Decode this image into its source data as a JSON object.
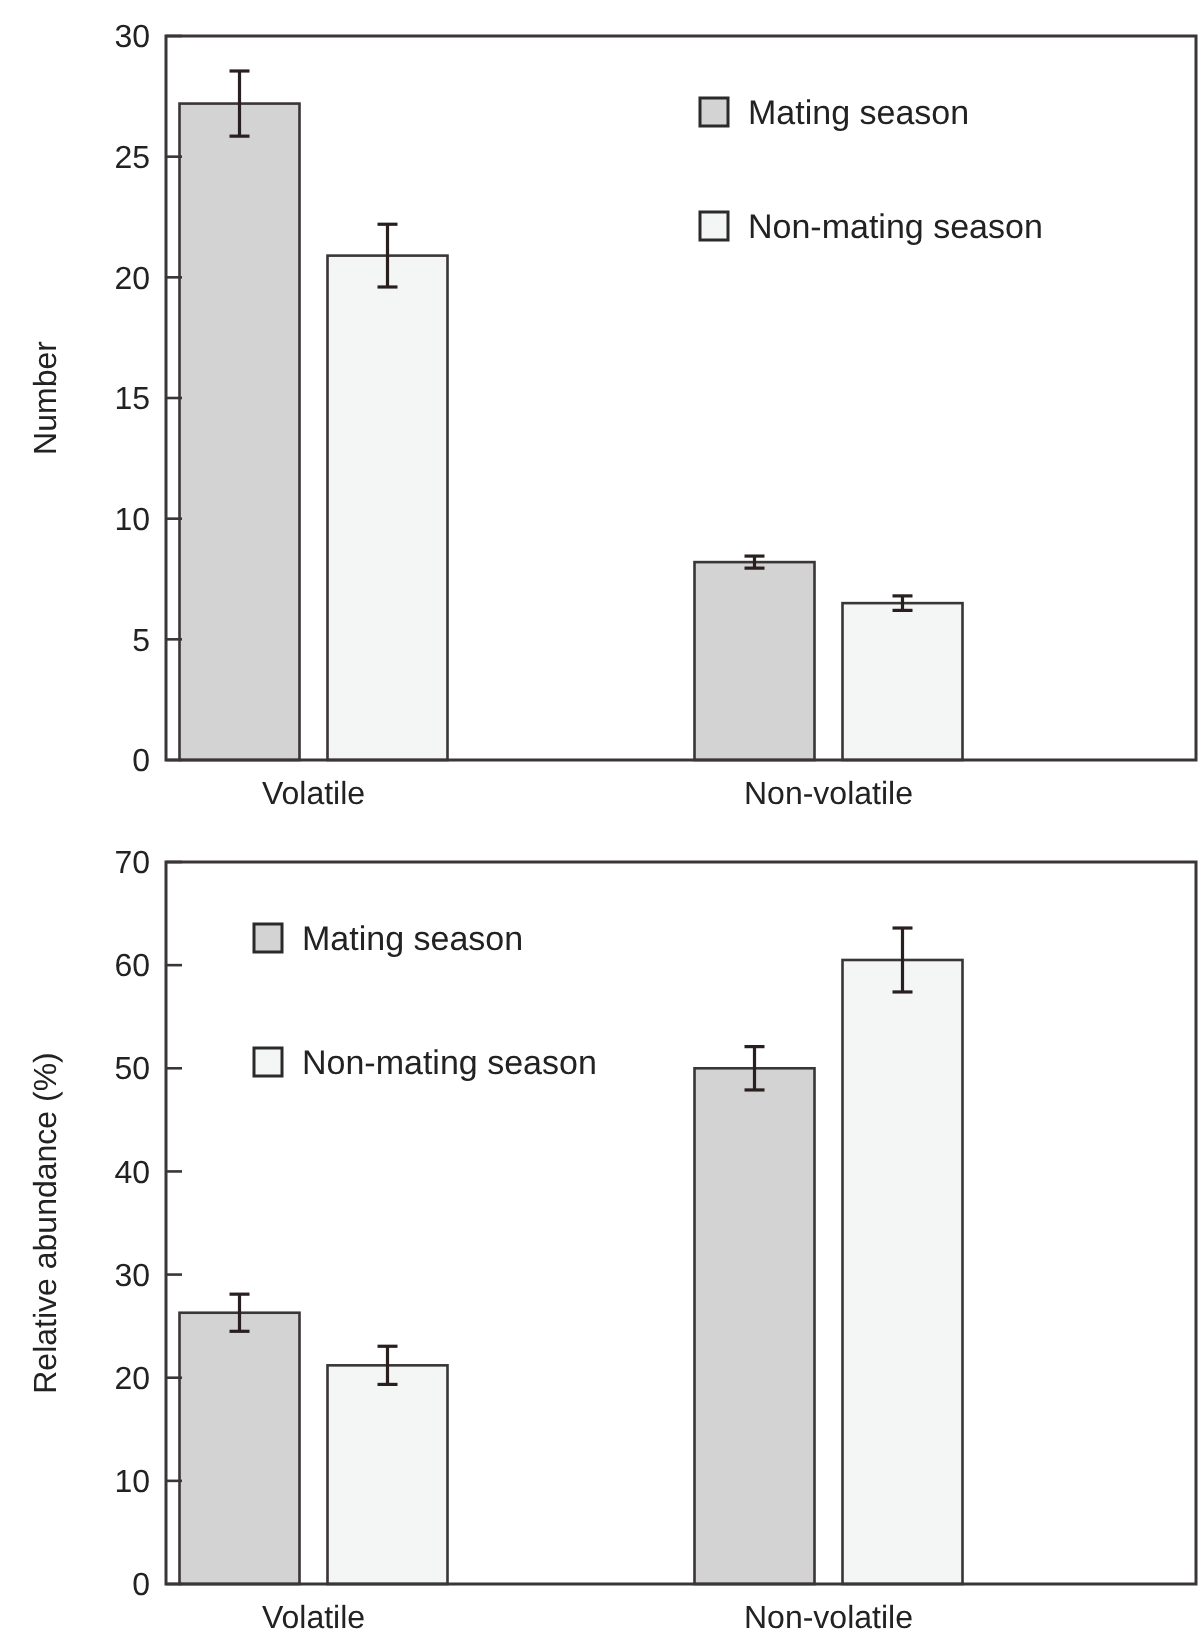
{
  "chart_data": [
    {
      "type": "bar",
      "ylabel": "Number",
      "categories": [
        "Volatile",
        "Non-volatile"
      ],
      "ylim": [
        0,
        30
      ],
      "yticks": [
        0,
        5,
        10,
        15,
        20,
        25,
        30
      ],
      "legend": "top right",
      "series": [
        {
          "name": "Mating season",
          "color": "#d3d3d3",
          "values": [
            27.2,
            8.2
          ],
          "errors": [
            1.35,
            0.25
          ]
        },
        {
          "name": "Non-mating season",
          "color": "#f4f6f6",
          "values": [
            20.9,
            6.5
          ],
          "errors": [
            1.3,
            0.3
          ]
        }
      ]
    },
    {
      "type": "bar",
      "ylabel": "Relative abundance (%)",
      "categories": [
        "Volatile",
        "Non-volatile"
      ],
      "ylim": [
        0,
        70
      ],
      "yticks": [
        0,
        10,
        20,
        30,
        40,
        50,
        60,
        70
      ],
      "legend": "top left",
      "series": [
        {
          "name": "Mating season",
          "color": "#d3d3d3",
          "values": [
            26.3,
            50.0
          ],
          "errors": [
            1.8,
            2.1
          ]
        },
        {
          "name": "Non-mating season",
          "color": "#f4f6f6",
          "values": [
            21.2,
            60.5
          ],
          "errors": [
            1.85,
            3.1
          ]
        }
      ]
    }
  ]
}
